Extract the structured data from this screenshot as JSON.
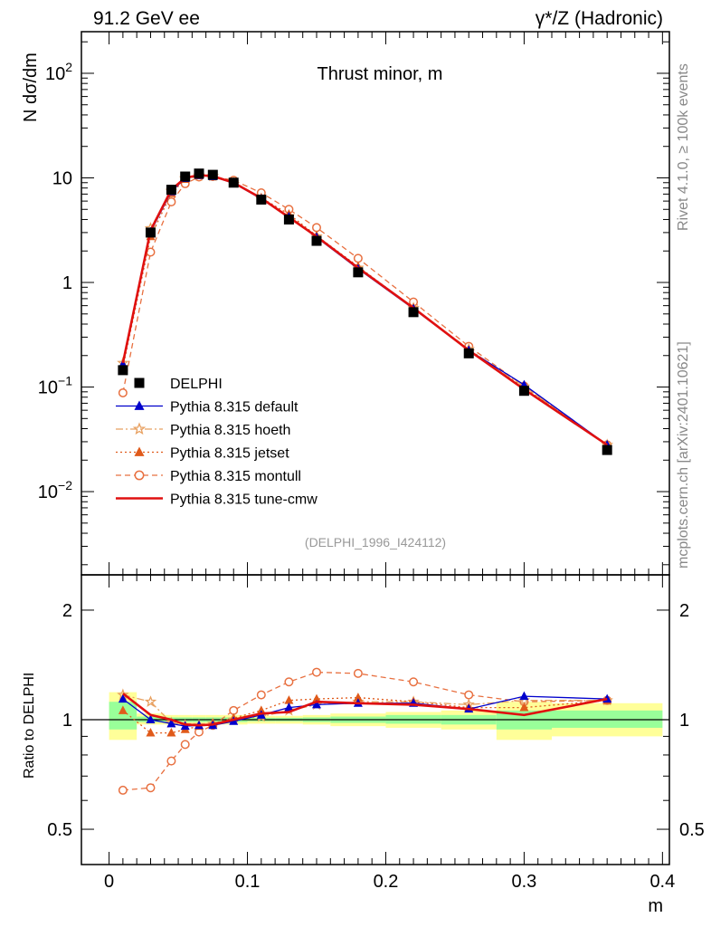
{
  "header": {
    "left": "91.2 GeV ee",
    "right": "γ*/Z (Hadronic)"
  },
  "side_labels": {
    "rivet": "Rivet 4.1.0, ≥ 100k events",
    "mcplots": "mcplots.cern.ch [arXiv:2401.10621]"
  },
  "chart_data": [
    {
      "type": "line",
      "name": "main",
      "title": "Thrust minor, m",
      "subtitle": "(DELPHI_1996_I424112)",
      "ylabel": "N  dσ/dm",
      "xlabel": "m",
      "yscale": "log",
      "ylim": [
        0.0016,
        250
      ],
      "xlim": [
        -0.02,
        0.405
      ],
      "y_ticks": [
        {
          "value": 100,
          "label": "10",
          "sup": "2"
        },
        {
          "value": 10,
          "label": "10",
          "sup": ""
        },
        {
          "value": 1,
          "label": "1",
          "sup": ""
        },
        {
          "value": 0.1,
          "label": "10",
          "sup": "−1"
        },
        {
          "value": 0.01,
          "label": "10",
          "sup": "−2"
        }
      ],
      "legend": [
        {
          "label": "DELPHI",
          "color": "#000000",
          "marker": "square",
          "dash": "none"
        },
        {
          "label": "Pythia 8.315 default",
          "color": "#0000cc",
          "marker": "triangle",
          "dash": "solid"
        },
        {
          "label": "Pythia 8.315 hoeth",
          "color": "#e8a060",
          "marker": "star",
          "dash": "dashdot"
        },
        {
          "label": "Pythia 8.315 jetset",
          "color": "#e05a1a",
          "marker": "triangle",
          "dash": "dotted"
        },
        {
          "label": "Pythia 8.315 montull",
          "color": "#e87040",
          "marker": "circle-open",
          "dash": "dashed"
        },
        {
          "label": "Pythia 8.315 tune-cmw",
          "color": "#e01010",
          "marker": "none",
          "dash": "thick"
        }
      ],
      "x": [
        0.01,
        0.03,
        0.045,
        0.055,
        0.065,
        0.075,
        0.09,
        0.11,
        0.13,
        0.15,
        0.18,
        0.22,
        0.26,
        0.3,
        0.36
      ],
      "series": [
        {
          "name": "DELPHI",
          "values": [
            0.145,
            3.0,
            7.7,
            10.3,
            11.0,
            10.7,
            9.0,
            6.2,
            4.0,
            2.5,
            1.25,
            0.52,
            0.21,
            0.092,
            0.025
          ]
        },
        {
          "name": "Pythia 8.315 default",
          "values": [
            0.165,
            3.05,
            7.4,
            9.9,
            10.6,
            10.3,
            8.9,
            6.3,
            4.25,
            2.7,
            1.35,
            0.56,
            0.225,
            0.105,
            0.028
          ]
        },
        {
          "name": "Pythia 8.315 hoeth",
          "values": [
            0.17,
            3.3,
            7.5,
            9.9,
            10.5,
            10.4,
            9.0,
            6.3,
            4.3,
            2.75,
            1.38,
            0.57,
            0.23,
            0.101,
            0.028
          ]
        },
        {
          "name": "Pythia 8.315 jetset",
          "values": [
            0.155,
            2.75,
            7.1,
            9.7,
            10.5,
            10.4,
            9.1,
            6.45,
            4.5,
            2.8,
            1.42,
            0.57,
            0.225,
            0.098,
            0.028
          ]
        },
        {
          "name": "Pythia 8.315 montull",
          "values": [
            0.088,
            1.95,
            5.9,
            8.8,
            10.2,
            10.3,
            9.5,
            7.2,
            5.0,
            3.35,
            1.7,
            0.65,
            0.245,
            0.102,
            0.028
          ]
        },
        {
          "name": "Pythia 8.315 tune-cmw",
          "values": [
            0.17,
            3.15,
            7.7,
            10.0,
            10.6,
            10.4,
            9.0,
            6.4,
            4.2,
            2.75,
            1.38,
            0.57,
            0.225,
            0.095,
            0.028
          ]
        }
      ]
    },
    {
      "type": "line",
      "name": "ratio",
      "ylabel": "Ratio to DELPHI",
      "xlabel": "m",
      "yscale": "log",
      "ylim": [
        0.4,
        2.5
      ],
      "xlim": [
        -0.02,
        0.405
      ],
      "x_ticks": [
        {
          "value": 0,
          "label": "0"
        },
        {
          "value": 0.1,
          "label": "0.1"
        },
        {
          "value": 0.2,
          "label": "0.2"
        },
        {
          "value": 0.3,
          "label": "0.3"
        },
        {
          "value": 0.4,
          "label": "0.4"
        }
      ],
      "y_ticks": [
        {
          "value": 2,
          "label": "2"
        },
        {
          "value": 1,
          "label": "1"
        },
        {
          "value": 0.5,
          "label": "0.5"
        }
      ],
      "bands": [
        {
          "x0": 0.0,
          "x1": 0.02,
          "y_lo_outer": 0.88,
          "y_hi_outer": 1.19,
          "y_lo_inner": 0.94,
          "y_hi_inner": 1.12
        },
        {
          "x0": 0.02,
          "x1": 0.04,
          "y_lo_outer": 0.97,
          "y_hi_outer": 1.04,
          "y_lo_inner": 0.985,
          "y_hi_inner": 1.02
        },
        {
          "x0": 0.04,
          "x1": 0.05,
          "y_lo_outer": 0.97,
          "y_hi_outer": 1.03,
          "y_lo_inner": 0.985,
          "y_hi_inner": 1.015
        },
        {
          "x0": 0.05,
          "x1": 0.06,
          "y_lo_outer": 0.97,
          "y_hi_outer": 1.03,
          "y_lo_inner": 0.985,
          "y_hi_inner": 1.015
        },
        {
          "x0": 0.06,
          "x1": 0.07,
          "y_lo_outer": 0.97,
          "y_hi_outer": 1.03,
          "y_lo_inner": 0.985,
          "y_hi_inner": 1.015
        },
        {
          "x0": 0.07,
          "x1": 0.08,
          "y_lo_outer": 0.97,
          "y_hi_outer": 1.03,
          "y_lo_inner": 0.985,
          "y_hi_inner": 1.015
        },
        {
          "x0": 0.08,
          "x1": 0.1,
          "y_lo_outer": 0.97,
          "y_hi_outer": 1.03,
          "y_lo_inner": 0.985,
          "y_hi_inner": 1.015
        },
        {
          "x0": 0.1,
          "x1": 0.12,
          "y_lo_outer": 0.975,
          "y_hi_outer": 1.025,
          "y_lo_inner": 0.99,
          "y_hi_inner": 1.012
        },
        {
          "x0": 0.12,
          "x1": 0.14,
          "y_lo_outer": 0.975,
          "y_hi_outer": 1.025,
          "y_lo_inner": 0.99,
          "y_hi_inner": 1.012
        },
        {
          "x0": 0.14,
          "x1": 0.16,
          "y_lo_outer": 0.97,
          "y_hi_outer": 1.03,
          "y_lo_inner": 0.985,
          "y_hi_inner": 1.015
        },
        {
          "x0": 0.16,
          "x1": 0.2,
          "y_lo_outer": 0.96,
          "y_hi_outer": 1.04,
          "y_lo_inner": 0.98,
          "y_hi_inner": 1.02
        },
        {
          "x0": 0.2,
          "x1": 0.24,
          "y_lo_outer": 0.95,
          "y_hi_outer": 1.05,
          "y_lo_inner": 0.975,
          "y_hi_inner": 1.03
        },
        {
          "x0": 0.24,
          "x1": 0.28,
          "y_lo_outer": 0.94,
          "y_hi_outer": 1.06,
          "y_lo_inner": 0.97,
          "y_hi_inner": 1.03
        },
        {
          "x0": 0.28,
          "x1": 0.32,
          "y_lo_outer": 0.88,
          "y_hi_outer": 1.12,
          "y_lo_inner": 0.94,
          "y_hi_inner": 1.06
        },
        {
          "x0": 0.32,
          "x1": 0.4,
          "y_lo_outer": 0.9,
          "y_hi_outer": 1.11,
          "y_lo_inner": 0.95,
          "y_hi_inner": 1.06
        }
      ],
      "x": [
        0.01,
        0.03,
        0.045,
        0.055,
        0.065,
        0.075,
        0.09,
        0.11,
        0.13,
        0.15,
        0.18,
        0.22,
        0.26,
        0.3,
        0.36
      ],
      "series": [
        {
          "name": "Pythia 8.315 default",
          "values": [
            1.14,
            1.0,
            0.975,
            0.96,
            0.965,
            0.965,
            0.99,
            1.03,
            1.08,
            1.1,
            1.11,
            1.11,
            1.07,
            1.16,
            1.14
          ]
        },
        {
          "name": "Pythia 8.315 hoeth",
          "values": [
            1.17,
            1.12,
            0.98,
            0.965,
            0.965,
            0.975,
            1.0,
            1.02,
            1.06,
            1.1,
            1.12,
            1.12,
            1.1,
            1.13,
            1.13
          ]
        },
        {
          "name": "Pythia 8.315 jetset",
          "values": [
            1.06,
            0.92,
            0.92,
            0.94,
            0.96,
            0.975,
            1.01,
            1.06,
            1.13,
            1.14,
            1.15,
            1.12,
            1.08,
            1.08,
            1.13
          ]
        },
        {
          "name": "Pythia 8.315 montull",
          "values": [
            0.64,
            0.65,
            0.77,
            0.855,
            0.925,
            0.965,
            1.06,
            1.17,
            1.27,
            1.35,
            1.34,
            1.27,
            1.17,
            1.12,
            1.13
          ]
        },
        {
          "name": "Pythia 8.315 tune-cmw",
          "values": [
            1.18,
            1.03,
            1.0,
            0.97,
            0.965,
            0.97,
            1.0,
            1.04,
            1.05,
            1.12,
            1.11,
            1.1,
            1.07,
            1.03,
            1.14
          ]
        }
      ]
    }
  ]
}
